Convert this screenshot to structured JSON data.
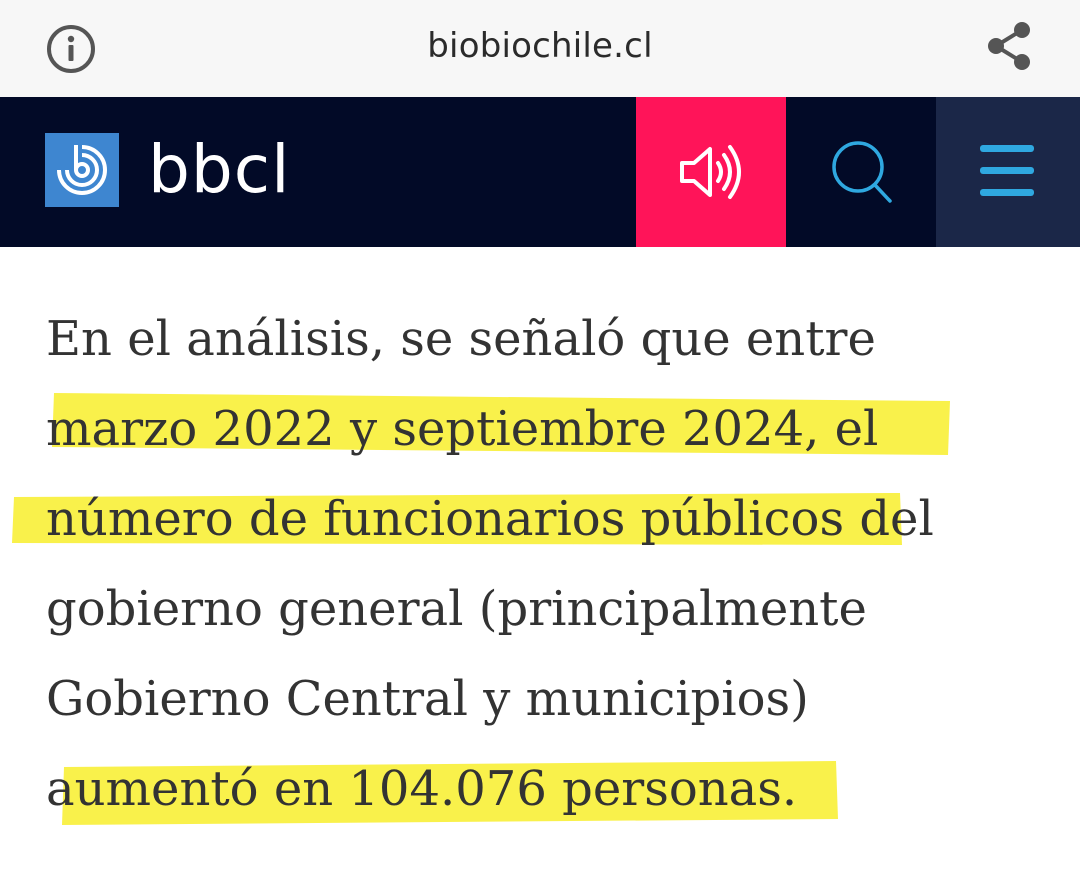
{
  "browser": {
    "url": "biobiochile.cl",
    "info_icon": "info-circle-icon",
    "share_icon": "share-icon"
  },
  "header": {
    "logo_text": "bbcl",
    "logo_icon": "biobio-logo-icon",
    "audio_icon": "speaker-icon",
    "search_icon": "search-icon",
    "menu_icon": "hamburger-menu-icon"
  },
  "article": {
    "lines": [
      "En el análisis, se señaló que entre",
      "marzo 2022 y septiembre 2024, el",
      "número de funcionarios públicos del",
      "gobierno general (principalmente",
      "Gobierno Central y municipios)",
      "aumentó en 104.076 personas."
    ],
    "highlight_color": "#f8ef2c"
  },
  "colors": {
    "header_bg": "#020a27",
    "audio_bg": "#ff1459",
    "menu_bg": "#1b2748",
    "logo_blue": "#3e86d0",
    "accent_cyan": "#2fa8e0",
    "text": "#333333"
  }
}
